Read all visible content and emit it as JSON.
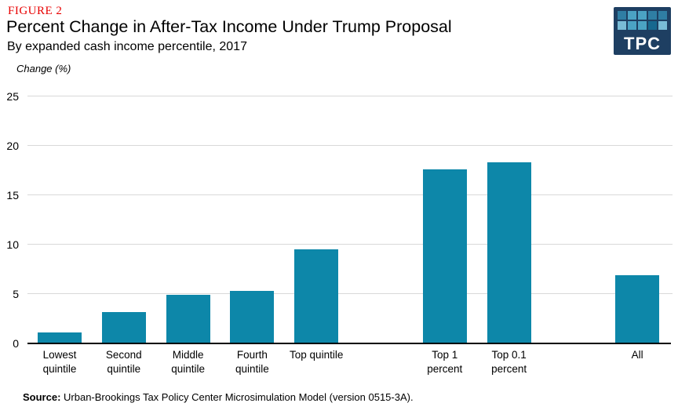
{
  "header": {
    "figure_label": "FIGURE 2",
    "title": "Percent Change in After-Tax Income Under Trump Proposal",
    "subtitle": "By expanded cash income percentile, 2017",
    "axis_unit_label": "Change (%)"
  },
  "logo": {
    "text": "TPC",
    "bg_color": "#1e3f62",
    "squares": [
      "#2f7ea4",
      "#4ba3c4",
      "#4ba3c4",
      "#2f7ea4",
      "#2f7ea4",
      "#79bcd6",
      "#4ba3c4",
      "#4ba3c4",
      "#16688f",
      "#79bcd6"
    ]
  },
  "colors": {
    "accent_red": "#e80000",
    "bar": "#0d87a9",
    "gridline": "#d9d9d9",
    "axis_line": "#000000"
  },
  "chart_data": {
    "type": "bar",
    "title": "Percent Change in After-Tax Income Under Trump Proposal",
    "subtitle": "By expanded cash income percentile, 2017",
    "xlabel": "",
    "ylabel": "Change (%)",
    "categories": [
      "Lowest\nquintile",
      "Second\nquintile",
      "Middle\nquintile",
      "Fourth\nquintile",
      "Top quintile",
      "Top 1\npercent",
      "Top 0.1\npercent",
      "All"
    ],
    "values": [
      1.1,
      3.1,
      4.9,
      5.3,
      9.5,
      17.6,
      18.3,
      6.9
    ],
    "slots": [
      0,
      1,
      2,
      3,
      4,
      6,
      7,
      9
    ],
    "ylim": [
      0,
      25
    ],
    "yticks": [
      0,
      5,
      10,
      15,
      20,
      25
    ],
    "grid": true,
    "legend": false,
    "bar_color": "#0d87a9"
  },
  "footer": {
    "source_label": "Source:",
    "source_text": " Urban-Brookings Tax Policy Center Microsimulation Model (version 0515-3A)."
  }
}
